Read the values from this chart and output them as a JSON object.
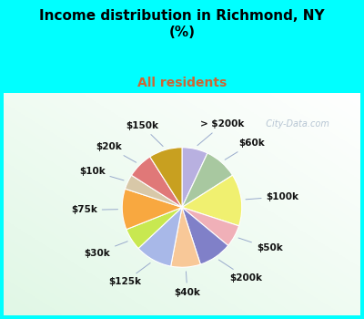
{
  "title": "Income distribution in Richmond, NY\n(%)",
  "subtitle": "All residents",
  "title_fontsize": 11,
  "subtitle_fontsize": 10,
  "subtitle_color": "#cc6633",
  "bg_color": "#00ffff",
  "labels": [
    "> $200k",
    "$60k",
    "$100k",
    "$50k",
    "$200k",
    "$40k",
    "$125k",
    "$30k",
    "$75k",
    "$10k",
    "$20k",
    "$150k"
  ],
  "values": [
    7,
    9,
    14,
    6,
    9,
    8,
    10,
    6,
    11,
    4,
    7,
    9
  ],
  "colors": [
    "#b8b0e0",
    "#a8c8a0",
    "#f0f070",
    "#f0b0b8",
    "#8080c8",
    "#f8c898",
    "#a8b8e8",
    "#c8e850",
    "#f8a840",
    "#d8c8a8",
    "#e07878",
    "#c8a020"
  ],
  "label_fontsize": 7.5,
  "label_color": "#111111",
  "watermark": "  City-Data.com",
  "watermark_color": "#aabbcc",
  "watermark_fontsize": 7
}
